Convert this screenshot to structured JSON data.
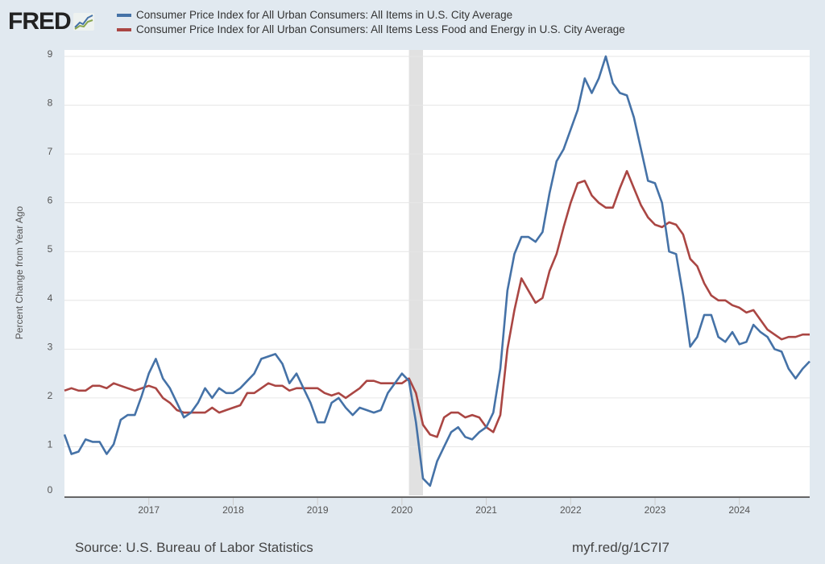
{
  "logo": {
    "text": "FRED"
  },
  "footer": {
    "source": "Source: U.S. Bureau of Labor Statistics",
    "link": "myf.red/g/1C7I7"
  },
  "colors": {
    "background": "#e1e9f0",
    "series1": "#4572a7",
    "series2": "#aa4643",
    "recession": "#e1e1e1",
    "grid": "#e6e6e6"
  },
  "chart_data": {
    "type": "line",
    "title": "",
    "xlabel": "",
    "ylabel": "Percent Change from Year Ago",
    "ylim": [
      0,
      9
    ],
    "yticks": [
      "0",
      "1",
      "2",
      "3",
      "4",
      "5",
      "6",
      "7",
      "8",
      "9"
    ],
    "xticks": [
      "2017",
      "2018",
      "2019",
      "2020",
      "2021",
      "2022",
      "2023",
      "2024"
    ],
    "x_start": "2016-01",
    "x_end": "2024-11",
    "frequency": "monthly",
    "grid": true,
    "legend": "top",
    "recession_shading": [
      {
        "start": "2020-02",
        "end": "2020-04"
      }
    ],
    "series": [
      {
        "name": "Consumer Price Index for All Urban Consumers: All Items in U.S. City Average",
        "values": [
          1.25,
          0.85,
          0.9,
          1.15,
          1.1,
          1.1,
          0.85,
          1.05,
          1.55,
          1.65,
          1.65,
          2.05,
          2.5,
          2.8,
          2.4,
          2.2,
          1.9,
          1.6,
          1.7,
          1.9,
          2.2,
          2.0,
          2.2,
          2.1,
          2.1,
          2.2,
          2.35,
          2.5,
          2.8,
          2.85,
          2.9,
          2.7,
          2.3,
          2.5,
          2.2,
          1.9,
          1.5,
          1.5,
          1.9,
          2.0,
          1.8,
          1.65,
          1.8,
          1.75,
          1.7,
          1.75,
          2.1,
          2.3,
          2.5,
          2.35,
          1.5,
          0.35,
          0.2,
          0.7,
          1.0,
          1.3,
          1.4,
          1.2,
          1.15,
          1.3,
          1.4,
          1.7,
          2.6,
          4.2,
          4.95,
          5.3,
          5.3,
          5.2,
          5.4,
          6.2,
          6.85,
          7.1,
          7.5,
          7.9,
          8.55,
          8.25,
          8.55,
          9.0,
          8.45,
          8.25,
          8.2,
          7.75,
          7.1,
          6.45,
          6.4,
          6.0,
          5.0,
          4.95,
          4.1,
          3.05,
          3.25,
          3.7,
          3.7,
          3.25,
          3.15,
          3.35,
          3.1,
          3.15,
          3.5,
          3.35,
          3.25,
          3.0,
          2.95,
          2.6,
          2.4,
          2.6,
          2.75
        ]
      },
      {
        "name": "Consumer Price Index for All Urban Consumers: All Items Less Food and Energy in U.S. City Average",
        "values": [
          2.15,
          2.2,
          2.15,
          2.15,
          2.25,
          2.25,
          2.2,
          2.3,
          2.25,
          2.2,
          2.15,
          2.2,
          2.25,
          2.2,
          2.0,
          1.9,
          1.75,
          1.7,
          1.7,
          1.7,
          1.7,
          1.8,
          1.7,
          1.75,
          1.8,
          1.85,
          2.1,
          2.1,
          2.2,
          2.3,
          2.25,
          2.25,
          2.15,
          2.2,
          2.2,
          2.2,
          2.2,
          2.1,
          2.05,
          2.1,
          2.0,
          2.1,
          2.2,
          2.35,
          2.35,
          2.3,
          2.3,
          2.3,
          2.3,
          2.4,
          2.1,
          1.45,
          1.25,
          1.2,
          1.6,
          1.7,
          1.7,
          1.6,
          1.65,
          1.6,
          1.4,
          1.3,
          1.65,
          3.0,
          3.8,
          4.45,
          4.2,
          3.95,
          4.05,
          4.6,
          4.95,
          5.5,
          6.0,
          6.4,
          6.45,
          6.15,
          6.0,
          5.9,
          5.9,
          6.3,
          6.65,
          6.3,
          5.95,
          5.7,
          5.55,
          5.5,
          5.6,
          5.55,
          5.35,
          4.85,
          4.7,
          4.35,
          4.1,
          4.0,
          4.0,
          3.9,
          3.85,
          3.75,
          3.8,
          3.6,
          3.4,
          3.3,
          3.2,
          3.25,
          3.25,
          3.3,
          3.3
        ]
      }
    ]
  }
}
